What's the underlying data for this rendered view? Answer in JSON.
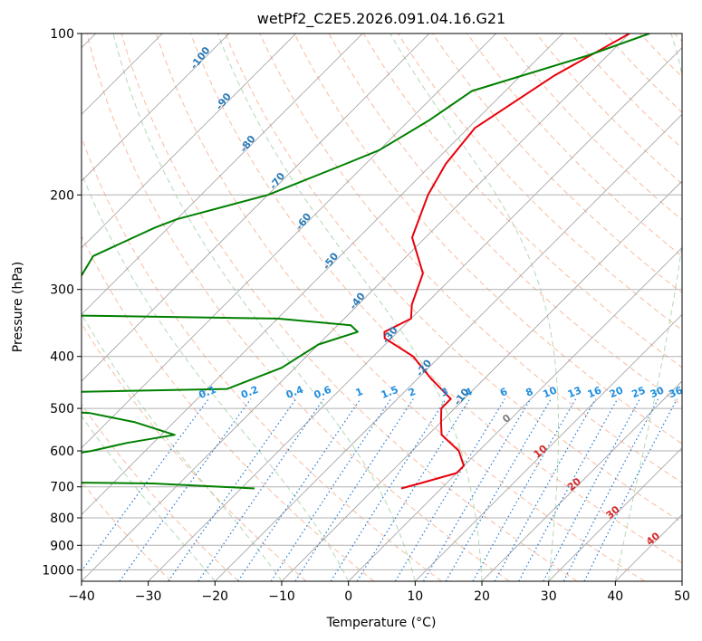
{
  "chart_data": {
    "type": "line",
    "title": "wetPf2_C2E5.2026.091.04.16.G21",
    "xlabel": "Temperature (°C)",
    "ylabel": "Pressure (hPa)",
    "xlim": [
      -40,
      50
    ],
    "ylim_pressure_hpa": [
      1050,
      100
    ],
    "y_scale": "log",
    "grid": true,
    "skew": true,
    "x_ticks": [
      -40,
      -30,
      -20,
      -10,
      0,
      10,
      20,
      30,
      40,
      50
    ],
    "x_tick_labels": [
      "−40",
      "−30",
      "−20",
      "−10",
      "0",
      "10",
      "20",
      "30",
      "40",
      "50"
    ],
    "y_ticks": [
      100,
      200,
      300,
      400,
      500,
      600,
      700,
      800,
      900,
      1000
    ],
    "y_tick_labels": [
      "100",
      "200",
      "300",
      "400",
      "500",
      "600",
      "700",
      "800",
      "900",
      "1000"
    ],
    "isotherms_c": [
      -120,
      -110,
      -100,
      -90,
      -80,
      -70,
      -60,
      -50,
      -40,
      -30,
      -20,
      -10,
      0,
      10,
      20,
      30,
      40,
      50
    ],
    "dry_adiabats_thetaC": [
      -30,
      -20,
      -10,
      0,
      10,
      20,
      30,
      40,
      50,
      60,
      70,
      80,
      90,
      100,
      110,
      120,
      130,
      140,
      150,
      160,
      170,
      180,
      190,
      200
    ],
    "moist_adiabats_thetaC": [
      -20,
      -10,
      0,
      10,
      20,
      30,
      40,
      50
    ],
    "mixing_ratio_gkg": [
      0.1,
      0.2,
      0.4,
      0.6,
      1,
      1.5,
      2,
      3,
      4,
      6,
      8,
      10,
      13,
      16,
      20,
      25,
      30,
      36
    ],
    "mixing_ratio_labels": [
      "0.1",
      "0.2",
      "0.4",
      "0.6",
      "1",
      "1.5",
      "2",
      "3",
      "4",
      "6",
      "8",
      "10",
      "13",
      "16",
      "20",
      "25",
      "30",
      "36"
    ],
    "wetbulb_zero_labels": [
      {
        "text": "-100",
        "t": -100,
        "p": 112
      },
      {
        "text": "-90",
        "t": -90,
        "p": 135
      },
      {
        "text": "-80",
        "t": -80,
        "p": 162
      },
      {
        "text": "-70",
        "t": -70,
        "p": 190
      },
      {
        "text": "-60",
        "t": -60,
        "p": 226
      },
      {
        "text": "-50",
        "t": -50,
        "p": 268
      },
      {
        "text": "-40",
        "t": -40,
        "p": 318
      },
      {
        "text": "-30",
        "t": -30,
        "p": 368
      },
      {
        "text": "-20",
        "t": -20,
        "p": 424
      },
      {
        "text": "-10",
        "t": -10,
        "p": 480
      }
    ],
    "isotherm_labels": [
      {
        "text": "0",
        "t": 0,
        "p": 528
      },
      {
        "text": "10",
        "t": 10,
        "p": 608
      },
      {
        "text": "20",
        "t": 20,
        "p": 700
      },
      {
        "text": "30",
        "t": 30,
        "p": 790
      },
      {
        "text": "40",
        "t": 40,
        "p": 885
      }
    ],
    "series": [
      {
        "color": "#e8000b",
        "points": [
          [
            -40,
            100
          ],
          [
            -45,
            120
          ],
          [
            -49,
            150
          ],
          [
            -48,
            175
          ],
          [
            -46,
            200
          ],
          [
            -42,
            240
          ],
          [
            -35,
            280
          ],
          [
            -32,
            320
          ],
          [
            -30,
            340
          ],
          [
            -32,
            360
          ],
          [
            -31,
            370
          ],
          [
            -24,
            400
          ],
          [
            -18,
            440
          ],
          [
            -12,
            480
          ],
          [
            -12,
            500
          ],
          [
            -10,
            530
          ],
          [
            -8,
            560
          ],
          [
            -3,
            600
          ],
          [
            0,
            640
          ],
          [
            0,
            660
          ],
          [
            -4,
            690
          ],
          [
            -6,
            705
          ]
        ]
      },
      {
        "color": "#008000",
        "points": [
          [
            -37,
            100
          ],
          [
            -43,
            110
          ],
          [
            -55,
            128
          ],
          [
            -57,
            145
          ],
          [
            -60,
            165
          ],
          [
            -63,
            175
          ],
          [
            -70,
            200
          ],
          [
            -80,
            222
          ],
          [
            -82,
            230
          ],
          [
            -87,
            260
          ],
          [
            -85,
            300
          ],
          [
            -84,
            335
          ],
          [
            -50,
            340
          ],
          [
            -38,
            350
          ],
          [
            -36,
            360
          ],
          [
            -40,
            380
          ],
          [
            -42,
            420
          ],
          [
            -47,
            460
          ],
          [
            -85,
            470
          ],
          [
            -90,
            480
          ],
          [
            -90,
            490
          ],
          [
            -64,
            510
          ],
          [
            -56,
            530
          ],
          [
            -48,
            560
          ],
          [
            -54,
            580
          ],
          [
            -58,
            600
          ],
          [
            -64,
            620
          ],
          [
            -92,
            635
          ],
          [
            -90,
            680
          ],
          [
            -44,
            690
          ],
          [
            -28,
            705
          ]
        ]
      }
    ]
  }
}
